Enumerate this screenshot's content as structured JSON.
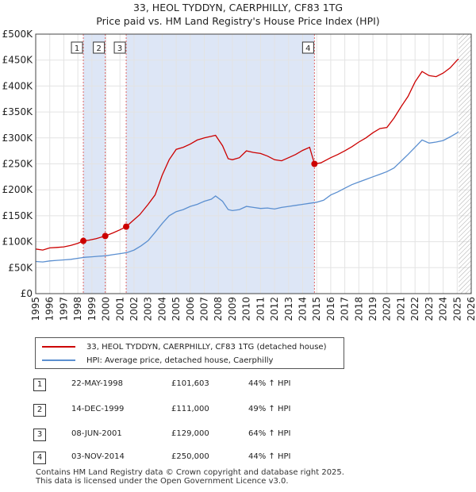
{
  "title_line1": "33, HEOL TYDDYN, CAERPHILLY, CF83 1TG",
  "title_line2": "Price paid vs. HM Land Registry's House Price Index (HPI)",
  "colors": {
    "property": "#cc0000",
    "hpi": "#5b8fd0",
    "shade": "#dde6f6",
    "marker_line": "#e06666"
  },
  "chart_data": {
    "type": "line",
    "ylim": [
      0,
      500000
    ],
    "xlim": [
      1995,
      2026
    ],
    "yticks": [
      0,
      50000,
      100000,
      150000,
      200000,
      250000,
      300000,
      350000,
      400000,
      450000,
      500000
    ],
    "ytick_labels": [
      "£0",
      "£50K",
      "£100K",
      "£150K",
      "£200K",
      "£250K",
      "£300K",
      "£350K",
      "£400K",
      "£450K",
      "£500K"
    ],
    "xticks": [
      1995,
      1996,
      1997,
      1998,
      1999,
      2000,
      2001,
      2002,
      2003,
      2004,
      2005,
      2006,
      2007,
      2008,
      2009,
      2010,
      2011,
      2012,
      2013,
      2014,
      2015,
      2016,
      2017,
      2018,
      2019,
      2020,
      2021,
      2022,
      2023,
      2024,
      2025,
      2026
    ],
    "shaded_ranges": [
      [
        1998.39,
        1999.95
      ],
      [
        2001.44,
        2014.84
      ]
    ],
    "hatch_from": 2025.1,
    "series": [
      {
        "name": "33, HEOL TYDDYN, CAERPHILLY, CF83 1TG (detached house)",
        "x": [
          1995,
          1995.5,
          1996,
          1996.5,
          1997,
          1997.5,
          1998,
          1998.39,
          1998.8,
          1999.3,
          1999.95,
          2000.5,
          2001,
          2001.44,
          2001.9,
          2002.4,
          2003,
          2003.5,
          2004,
          2004.5,
          2005,
          2005.5,
          2006,
          2006.5,
          2007,
          2007.5,
          2007.8,
          2008.3,
          2008.7,
          2009,
          2009.5,
          2010,
          2010.5,
          2011,
          2011.5,
          2012,
          2012.5,
          2013,
          2013.5,
          2014,
          2014.5,
          2014.84,
          2015.3,
          2016,
          2016.5,
          2017,
          2017.5,
          2018,
          2018.5,
          2019,
          2019.5,
          2020,
          2020.5,
          2021,
          2021.5,
          2022,
          2022.5,
          2023,
          2023.5,
          2024,
          2024.5,
          2025,
          2025.1
        ],
        "values": [
          86000,
          84000,
          88000,
          89000,
          90000,
          93000,
          97000,
          101603,
          103000,
          106000,
          111000,
          117000,
          123000,
          129000,
          140000,
          152000,
          172000,
          190000,
          228000,
          258000,
          278000,
          282000,
          288000,
          296000,
          300000,
          303000,
          305000,
          285000,
          260000,
          258000,
          262000,
          275000,
          272000,
          270000,
          265000,
          258000,
          256000,
          262000,
          268000,
          276000,
          282000,
          250000,
          252000,
          262000,
          268000,
          275000,
          283000,
          292000,
          300000,
          310000,
          318000,
          320000,
          338000,
          360000,
          380000,
          408000,
          428000,
          420000,
          418000,
          425000,
          435000,
          450000,
          452000
        ]
      },
      {
        "name": "HPI: Average price, detached house, Caerphilly",
        "x": [
          1995,
          1995.5,
          1996,
          1996.5,
          1997,
          1997.5,
          1998,
          1998.5,
          1999,
          1999.5,
          2000,
          2000.5,
          2001,
          2001.5,
          2002,
          2002.5,
          2003,
          2003.5,
          2004,
          2004.5,
          2005,
          2005.5,
          2006,
          2006.5,
          2007,
          2007.5,
          2007.8,
          2008.3,
          2008.7,
          2009,
          2009.5,
          2010,
          2010.5,
          2011,
          2011.5,
          2012,
          2012.5,
          2013,
          2013.5,
          2014,
          2014.5,
          2015,
          2015.5,
          2016,
          2016.5,
          2017,
          2017.5,
          2018,
          2018.5,
          2019,
          2019.5,
          2020,
          2020.5,
          2021,
          2021.5,
          2022,
          2022.5,
          2023,
          2023.5,
          2024,
          2024.5,
          2025,
          2025.1
        ],
        "values": [
          62000,
          61000,
          63000,
          64000,
          65000,
          66000,
          68000,
          70000,
          71000,
          72000,
          73000,
          75000,
          77000,
          79000,
          84000,
          92000,
          102000,
          118000,
          135000,
          150000,
          158000,
          162000,
          168000,
          172000,
          178000,
          182000,
          188000,
          178000,
          162000,
          160000,
          162000,
          168000,
          166000,
          164000,
          165000,
          163000,
          166000,
          168000,
          170000,
          172000,
          174000,
          176000,
          180000,
          190000,
          196000,
          203000,
          210000,
          215000,
          220000,
          225000,
          230000,
          235000,
          242000,
          255000,
          268000,
          282000,
          296000,
          290000,
          292000,
          295000,
          302000,
          310000,
          312000
        ]
      }
    ],
    "markers": [
      {
        "label": "1",
        "x": 1998.39,
        "y": 101603
      },
      {
        "label": "2",
        "x": 1999.95,
        "y": 111000
      },
      {
        "label": "3",
        "x": 2001.44,
        "y": 129000
      },
      {
        "label": "4",
        "x": 2014.84,
        "y": 250000
      }
    ]
  },
  "legend": {
    "property": "33, HEOL TYDDYN, CAERPHILLY, CF83 1TG (detached house)",
    "hpi": "HPI: Average price, detached house, Caerphilly"
  },
  "transactions": [
    {
      "num": "1",
      "date": "22-MAY-1998",
      "price": "£101,603",
      "hpi": "44% ↑ HPI"
    },
    {
      "num": "2",
      "date": "14-DEC-1999",
      "price": "£111,000",
      "hpi": "49% ↑ HPI"
    },
    {
      "num": "3",
      "date": "08-JUN-2001",
      "price": "£129,000",
      "hpi": "64% ↑ HPI"
    },
    {
      "num": "4",
      "date": "03-NOV-2014",
      "price": "£250,000",
      "hpi": "44% ↑ HPI"
    }
  ],
  "footer_line1": "Contains HM Land Registry data © Crown copyright and database right 2025.",
  "footer_line2": "This data is licensed under the Open Government Licence v3.0."
}
